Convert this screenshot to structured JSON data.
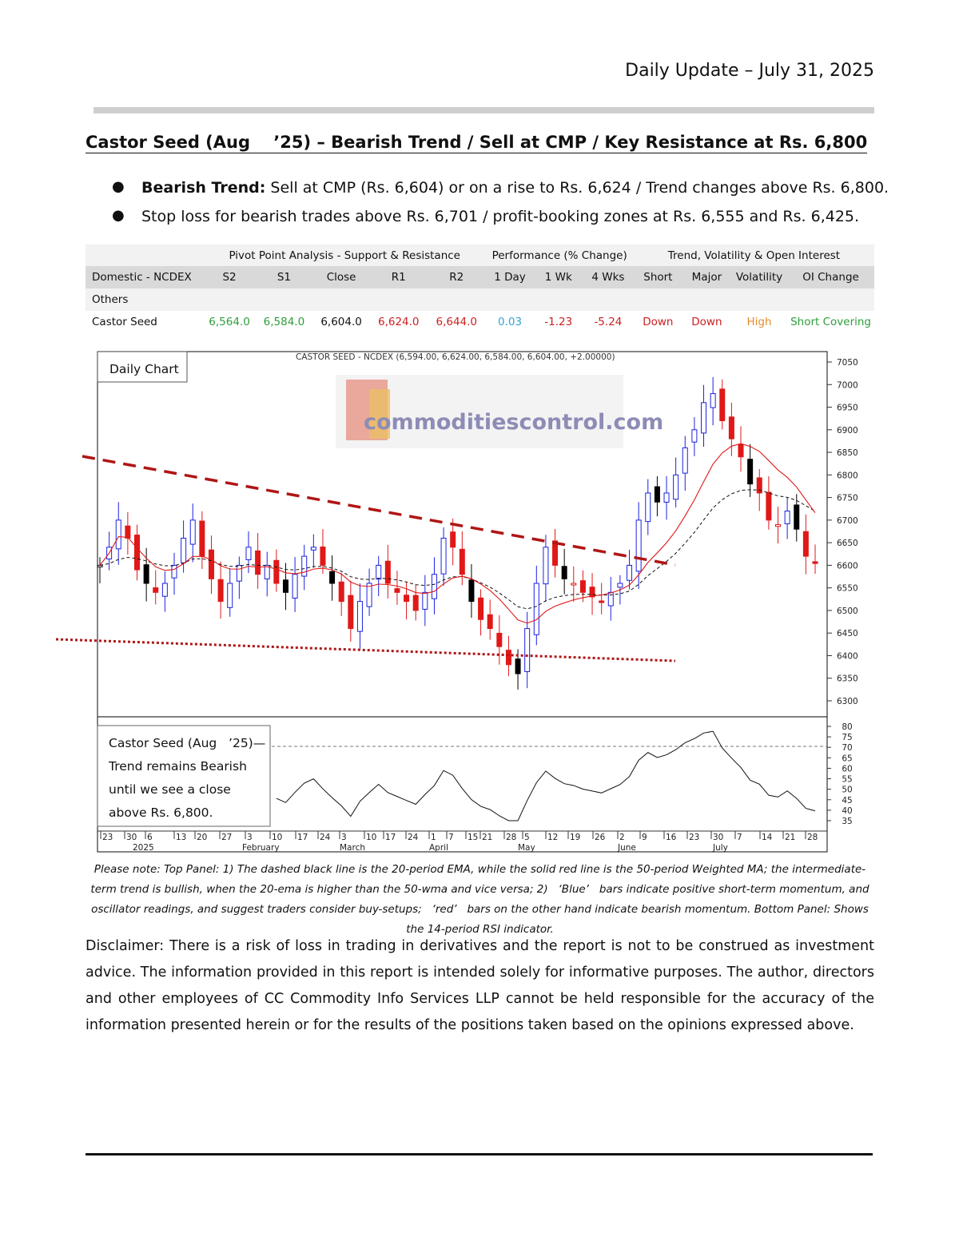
{
  "header": {
    "date": "Daily Update – July 31, 2025"
  },
  "title": "Castor Seed (Aug    ’25) – Bearish Trend / Sell at CMP / Key Resistance at Rs. 6,800",
  "bullets": [
    {
      "bold": "Bearish Trend:",
      "text": " Sell at CMP (Rs. 6,604) or on a rise to Rs. 6,624 / Trend changes above Rs. 6,800."
    },
    {
      "bold": "",
      "text": "Stop loss for bearish trades above Rs. 6,701 / profit-booking zones at Rs. 6,555 and Rs. 6,425."
    }
  ],
  "table": {
    "groups": [
      "Pivot Point Analysis - Support & Resistance",
      "Performance (% Change)",
      "Trend, Volatility & Open Interest"
    ],
    "headers": [
      "Domestic - NCDEX",
      "S2",
      "S1",
      "Close",
      "R1",
      "R2",
      "1 Day",
      "1 Wk",
      "4 Wks",
      "Short",
      "Major",
      "Volatility",
      "OI Change"
    ],
    "section": "Others",
    "row": [
      "Castor Seed",
      "6,564.0",
      "6,584.0",
      "6,604.0",
      "6,624.0",
      "6,644.0",
      "0.03",
      "-1.23",
      "-5.24",
      "Down",
      "Down",
      "High",
      "Short Covering"
    ],
    "colors": {
      "green": "#2e9e3a",
      "red": "#cc2020",
      "blue": "#31a3d6",
      "orange": "#e38a2b"
    }
  },
  "chart": {
    "label": "Daily Chart",
    "header": "CASTOR SEED - NCDEX (6,594.00, 6,624.00, 6,584.00, 6,604.00, +2.00000)",
    "watermark": "commoditiescontrol.com",
    "price_ticks": [
      "7050",
      "7000",
      "6950",
      "6900",
      "6850",
      "6800",
      "6750",
      "6700",
      "6650",
      "6600",
      "6550",
      "6500",
      "6450",
      "6400",
      "6350",
      "6300"
    ],
    "rsi_ticks": [
      "80",
      "75",
      "70",
      "65",
      "60",
      "55",
      "50",
      "45",
      "40",
      "35"
    ],
    "date_ticks": [
      "23",
      "30",
      "6",
      "13",
      "20",
      "27",
      "3",
      "10",
      "17",
      "24",
      "3",
      "10",
      "17",
      "24",
      "1",
      "7",
      "15",
      "21",
      "28",
      "5",
      "12",
      "19",
      "26",
      "2",
      "9",
      "16",
      "23",
      "30",
      "7",
      "14",
      "21",
      "28"
    ],
    "month_labels": [
      "2025",
      "February",
      "March",
      "April",
      "May",
      "June",
      "July"
    ],
    "rsi_note": [
      "Castor Seed (Aug   ’25)—",
      "Trend remains Bearish",
      "until we see a close",
      "above Rs. 6,800."
    ]
  },
  "chart_data": {
    "type": "candlestick",
    "title": "CASTOR SEED - NCDEX (6,594.00, 6,624.00, 6,584.00, 6,604.00, +2.00000)",
    "ylim": [
      6300,
      7050
    ],
    "close_approx": [
      6600,
      6640,
      6700,
      6660,
      6590,
      6560,
      6540,
      6560,
      6600,
      6660,
      6700,
      6620,
      6570,
      6520,
      6560,
      6600,
      6640,
      6580,
      6600,
      6560,
      6540,
      6580,
      6620,
      6640,
      6600,
      6560,
      6520,
      6460,
      6520,
      6560,
      6600,
      6560,
      6540,
      6520,
      6500,
      6540,
      6580,
      6660,
      6640,
      6580,
      6520,
      6480,
      6460,
      6420,
      6380,
      6360,
      6460,
      6560,
      6640,
      6600,
      6570,
      6560,
      6540,
      6530,
      6520,
      6540,
      6560,
      6600,
      6700,
      6760,
      6740,
      6760,
      6800,
      6860,
      6900,
      6960,
      6980,
      6920,
      6880,
      6840,
      6780,
      6760,
      6700,
      6690,
      6720,
      6680,
      6620,
      6604
    ],
    "rsi_level_line": 70
  },
  "note": "Please note: Top Panel: 1) The dashed black line is the 20-period EMA, while the solid red line is the 50-period Weighted MA; the intermediate-term trend is bullish, when the 20-ema is higher than the 50-wma and vice versa; 2)   ‘Blue’   bars indicate positive short-term momentum, and oscillator readings, and suggest traders consider buy-setups;   ‘red’   bars on the other hand indicate bearish momentum. Bottom Panel: Shows the 14-period RSI indicator.",
  "disclaimer": "Disclaimer: There is a risk of loss in trading in derivatives and the report is not to be construed as investment advice. The information provided in this report is intended solely for informative purposes. The author, directors and other employees of CC Commodity Info Services LLP cannot be held responsible for the accuracy of the information presented herein or for the results of the positions taken based on the opinions expressed above."
}
